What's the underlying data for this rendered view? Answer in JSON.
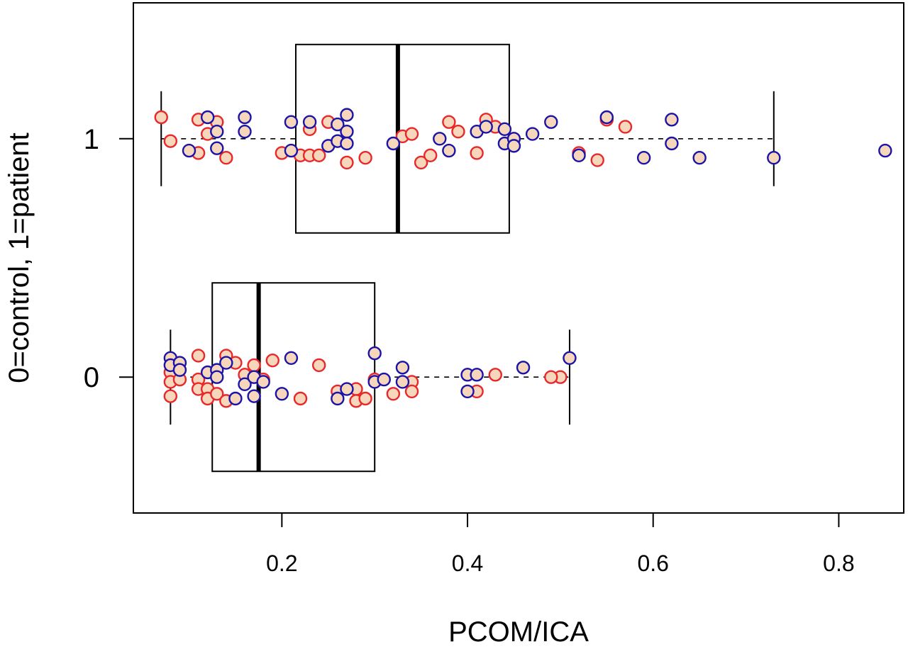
{
  "chart_data": {
    "type": "boxplot",
    "orientation": "horizontal",
    "xlabel": "PCOM/ICA",
    "ylabel": "0=control, 1=patient",
    "xlim": [
      0.04,
      0.87
    ],
    "ylim": [
      -0.57,
      1.57
    ],
    "x_ticks": [
      "0.2",
      "0.4",
      "0.6",
      "0.8"
    ],
    "x_tick_values": [
      0.2,
      0.4,
      0.6,
      0.8
    ],
    "y_ticks": [
      "0",
      "1"
    ],
    "y_tick_values": [
      0,
      1
    ],
    "grid": false,
    "colors": {
      "box_line": "#000000",
      "red_edge": "#e8282b",
      "blue_edge": "#1a14a8",
      "marker_fill": "#f6d7bc",
      "whisker": "#000000"
    },
    "boxes": [
      {
        "group": "1",
        "y": 1,
        "whisker_low": 0.07,
        "q1": 0.215,
        "median": 0.325,
        "q3": 0.445,
        "whisker_high": 0.73
      },
      {
        "group": "0",
        "y": 0,
        "whisker_low": 0.08,
        "q1": 0.125,
        "median": 0.175,
        "q3": 0.3,
        "whisker_high": 0.51
      }
    ],
    "series": [
      {
        "group": "1",
        "edge": "red",
        "points": [
          [
            0.07,
            1.09
          ],
          [
            0.08,
            0.99
          ],
          [
            0.11,
            1.08
          ],
          [
            0.11,
            0.94
          ],
          [
            0.12,
            1.02
          ],
          [
            0.13,
            1.07
          ],
          [
            0.14,
            0.92
          ],
          [
            0.2,
            0.94
          ],
          [
            0.22,
            0.93
          ],
          [
            0.23,
            1.04
          ],
          [
            0.23,
            0.93
          ],
          [
            0.24,
            0.93
          ],
          [
            0.25,
            1.07
          ],
          [
            0.27,
            0.9
          ],
          [
            0.29,
            0.92
          ],
          [
            0.33,
            1.01
          ],
          [
            0.34,
            1.02
          ],
          [
            0.35,
            0.9
          ],
          [
            0.36,
            0.93
          ],
          [
            0.38,
            1.07
          ],
          [
            0.39,
            1.03
          ],
          [
            0.41,
            0.94
          ],
          [
            0.42,
            1.08
          ],
          [
            0.43,
            1.05
          ],
          [
            0.52,
            0.94
          ],
          [
            0.54,
            0.91
          ],
          [
            0.55,
            1.08
          ],
          [
            0.57,
            1.05
          ]
        ]
      },
      {
        "group": "1",
        "edge": "blue",
        "points": [
          [
            0.1,
            0.95
          ],
          [
            0.12,
            1.09
          ],
          [
            0.13,
            1.03
          ],
          [
            0.13,
            0.96
          ],
          [
            0.16,
            1.09
          ],
          [
            0.16,
            1.03
          ],
          [
            0.21,
            1.07
          ],
          [
            0.21,
            0.95
          ],
          [
            0.23,
            1.07
          ],
          [
            0.25,
            0.97
          ],
          [
            0.26,
            1.06
          ],
          [
            0.26,
            0.99
          ],
          [
            0.27,
            1.1
          ],
          [
            0.27,
            1.03
          ],
          [
            0.27,
            0.98
          ],
          [
            0.32,
            0.98
          ],
          [
            0.37,
            1.0
          ],
          [
            0.38,
            0.95
          ],
          [
            0.41,
            1.03
          ],
          [
            0.42,
            1.05
          ],
          [
            0.44,
            1.04
          ],
          [
            0.44,
            0.98
          ],
          [
            0.45,
            1.0
          ],
          [
            0.45,
            0.97
          ],
          [
            0.47,
            1.02
          ],
          [
            0.49,
            1.07
          ],
          [
            0.52,
            0.93
          ],
          [
            0.55,
            1.09
          ],
          [
            0.59,
            0.92
          ],
          [
            0.62,
            1.08
          ],
          [
            0.62,
            0.98
          ],
          [
            0.65,
            0.92
          ],
          [
            0.73,
            0.92
          ],
          [
            0.85,
            0.95
          ]
        ]
      },
      {
        "group": "0",
        "edge": "red",
        "points": [
          [
            0.08,
            0.02
          ],
          [
            0.08,
            -0.02
          ],
          [
            0.08,
            -0.08
          ],
          [
            0.09,
            -0.01
          ],
          [
            0.11,
            0.09
          ],
          [
            0.11,
            -0.01
          ],
          [
            0.11,
            -0.05
          ],
          [
            0.12,
            -0.05
          ],
          [
            0.12,
            -0.09
          ],
          [
            0.13,
            -0.07
          ],
          [
            0.14,
            0.09
          ],
          [
            0.14,
            -0.1
          ],
          [
            0.15,
            0.06
          ],
          [
            0.16,
            0.01
          ],
          [
            0.17,
            0.05
          ],
          [
            0.18,
            -0.01
          ],
          [
            0.19,
            0.07
          ],
          [
            0.22,
            -0.09
          ],
          [
            0.24,
            0.05
          ],
          [
            0.26,
            -0.06
          ],
          [
            0.28,
            -0.05
          ],
          [
            0.28,
            -0.1
          ],
          [
            0.29,
            -0.09
          ],
          [
            0.3,
            -0.01
          ],
          [
            0.32,
            -0.07
          ],
          [
            0.34,
            -0.02
          ],
          [
            0.34,
            -0.06
          ],
          [
            0.41,
            -0.06
          ],
          [
            0.43,
            0.01
          ],
          [
            0.5,
            0.0
          ],
          [
            0.49,
            0.0
          ]
        ]
      },
      {
        "group": "0",
        "edge": "blue",
        "points": [
          [
            0.08,
            0.08
          ],
          [
            0.08,
            0.05
          ],
          [
            0.09,
            0.06
          ],
          [
            0.09,
            0.03
          ],
          [
            0.12,
            0.02
          ],
          [
            0.13,
            0.03
          ],
          [
            0.13,
            0.0
          ],
          [
            0.14,
            0.06
          ],
          [
            0.15,
            -0.09
          ],
          [
            0.16,
            -0.03
          ],
          [
            0.17,
            0.0
          ],
          [
            0.17,
            -0.08
          ],
          [
            0.18,
            -0.02
          ],
          [
            0.2,
            -0.07
          ],
          [
            0.21,
            0.08
          ],
          [
            0.26,
            -0.09
          ],
          [
            0.27,
            -0.05
          ],
          [
            0.3,
            0.1
          ],
          [
            0.3,
            -0.02
          ],
          [
            0.31,
            -0.01
          ],
          [
            0.33,
            0.04
          ],
          [
            0.33,
            -0.02
          ],
          [
            0.4,
            0.01
          ],
          [
            0.4,
            -0.06
          ],
          [
            0.41,
            0.01
          ],
          [
            0.46,
            0.04
          ],
          [
            0.51,
            0.08
          ]
        ]
      }
    ]
  }
}
